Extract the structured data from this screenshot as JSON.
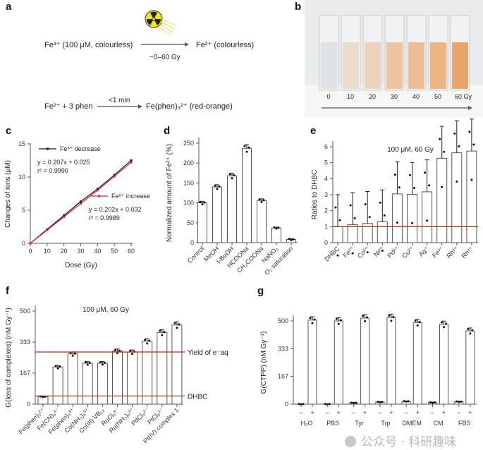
{
  "panel_labels": {
    "a": "a",
    "b": "b",
    "c": "c",
    "d": "d",
    "e": "e",
    "f": "f",
    "g": "g"
  },
  "panel_a": {
    "reaction1_left": "Fe³⁺ (100 μM, colourless)",
    "reaction1_right": "Fe²⁺ (colourless)",
    "reaction1_condition": "~0–60 Gy",
    "reaction2_left": "Fe²⁺ + 3 phen",
    "reaction2_condition": "<1 min",
    "reaction2_right": "Fe(phen)₃²⁺ (red-orange)",
    "icon": "radiation-icon"
  },
  "panel_b": {
    "dose_labels": [
      "0",
      "10",
      "20",
      "30",
      "40",
      "50",
      "60 Gy"
    ],
    "liquid_colors": [
      "#dfe3e6",
      "#e9dccd",
      "#ecd2bb",
      "#eec3a0",
      "#eebd96",
      "#eeb482",
      "#e9a66b"
    ]
  },
  "chart_data": [
    {
      "panel": "c",
      "type": "line",
      "xlabel": "Dose (Gy)",
      "ylabel": "Changes of ions (μM)",
      "xlim": [
        0,
        60
      ],
      "ylim": [
        0,
        15
      ],
      "xticks": [
        "0",
        "10",
        "20",
        "30",
        "40",
        "50",
        "60"
      ],
      "yticks": [
        "0",
        "5",
        "10",
        "15"
      ],
      "x": [
        0,
        10,
        20,
        30,
        40,
        50,
        60
      ],
      "series": [
        {
          "name": "Fe³⁺ decrease",
          "color": "#111111",
          "values": [
            0,
            2.1,
            4.2,
            6.3,
            8.2,
            10.3,
            12.5
          ],
          "equation": "y = 0.207x + 0.025",
          "r2": "r² = 0.9990"
        },
        {
          "name": "Fe²⁺ increase",
          "color": "#e0282a",
          "values": [
            0,
            2.0,
            4.0,
            6.0,
            8.0,
            10.1,
            12.2
          ],
          "equation": "y = 0.202x + 0.032",
          "r2": "r² = 0.9989"
        }
      ],
      "legend": "inline"
    },
    {
      "panel": "d",
      "type": "bar",
      "ylabel": "Normalized amount of Fe²⁺ (%)",
      "ylim": [
        0,
        250
      ],
      "yticks": [
        "0",
        "50",
        "100",
        "150",
        "200",
        "250"
      ],
      "categories": [
        "Control",
        "MeOH",
        "t-BuOH",
        "HCOONa",
        "CH₃COONa",
        "NaNO₃",
        "O₂ saturation"
      ],
      "values": [
        100,
        140,
        168,
        237,
        106,
        37,
        8
      ]
    },
    {
      "panel": "e",
      "type": "bar",
      "ylabel": "Ratios to DHBC",
      "annotation": "100 μM, 60 Gy",
      "ylim": [
        0,
        6
      ],
      "yticks": [
        "0",
        "1",
        "2",
        "3",
        "4",
        "5",
        "6"
      ],
      "categories": [
        "DHBC",
        "Fe²⁺",
        "Co²⁺",
        "Ni²⁺",
        "Pd²⁺",
        "Cu²⁺",
        "Ag⁺",
        "Fe³⁺",
        "Rh³⁺",
        "Rh³⁺"
      ],
      "values": [
        1.0,
        1.13,
        1.2,
        1.3,
        3.05,
        3.02,
        3.18,
        5.28,
        5.62,
        5.73
      ],
      "reference_lines": [
        {
          "value": 1,
          "color": "#e0282a"
        }
      ]
    },
    {
      "panel": "f",
      "type": "bar",
      "ylabel": "G(loss of complexes) (nM Gy⁻¹)",
      "annotation": "100 μM, 60 Gy",
      "ylim": [
        0,
        500
      ],
      "yticks": [
        "0",
        "167",
        "333",
        "500"
      ],
      "categories": [
        "Fe(phen)₃²⁺",
        "Fe(CN)₆³⁻",
        "Fe(phen)₃³⁺",
        "Co(NH₃)₆³⁺",
        "Co(III) VB₁₂",
        "RuCl₆³⁻",
        "Ru(NH₃)₆³⁺",
        "PdCl₄²⁻",
        "PtCl₆²⁻",
        "Pt(IV) complex 1"
      ],
      "values": [
        40,
        200,
        270,
        220,
        220,
        285,
        280,
        338,
        385,
        425
      ],
      "reference_lines": [
        {
          "value": 280,
          "label": "Yield of e⁻aq",
          "color": "#e0282a"
        },
        {
          "value": 44,
          "label": "DHBC",
          "color": "#e0282a"
        }
      ]
    },
    {
      "panel": "g",
      "type": "bar",
      "ylabel": "G(CTPP) (nM Gy⁻¹)",
      "ylim": [
        0,
        500
      ],
      "yticks": [
        "0",
        "167",
        "333",
        "500"
      ],
      "categories": [
        "H₂O",
        "PBS",
        "Tyr",
        "Trp",
        "DMEM",
        "CM",
        "FBS"
      ],
      "sublabels": [
        "–",
        "+"
      ],
      "series": [
        {
          "name": "–",
          "values": [
            0,
            0,
            8,
            13,
            17,
            10,
            15
          ]
        },
        {
          "name": "+",
          "values": [
            505,
            500,
            517,
            520,
            490,
            480,
            440
          ]
        }
      ]
    }
  ],
  "watermark": "公众号 · 科研趣味"
}
